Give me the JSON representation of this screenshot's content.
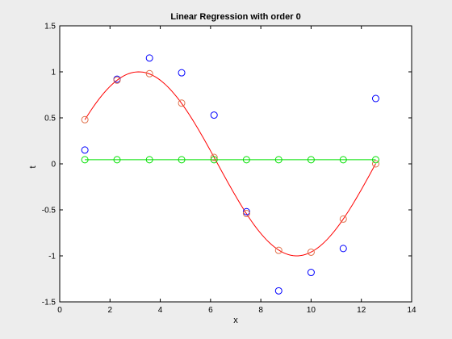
{
  "chart_data": {
    "type": "line",
    "title": "Linear Regression with order 0",
    "xlabel": "x",
    "ylabel": "t",
    "xlim": [
      0,
      14
    ],
    "ylim": [
      -1.5,
      1.5
    ],
    "xticks": [
      0,
      2,
      4,
      6,
      8,
      10,
      12,
      14
    ],
    "yticks": [
      -1.5,
      -1,
      -0.5,
      0,
      0.5,
      1,
      1.5
    ],
    "xtick_labels": [
      "0",
      "2",
      "4",
      "6",
      "8",
      "10",
      "12",
      "14"
    ],
    "ytick_labels": [
      "-1.5",
      "-1",
      "-0.5",
      "0",
      "0.5",
      "1",
      "1.5"
    ],
    "grid": false,
    "series": [
      {
        "style": "markers",
        "color": "#0000ff",
        "x": [
          1.0,
          2.28,
          3.57,
          4.85,
          6.14,
          7.43,
          8.71,
          10.0,
          11.28,
          12.57
        ],
        "y": [
          0.15,
          0.92,
          1.15,
          0.99,
          0.53,
          -0.52,
          -1.38,
          -1.18,
          -0.92,
          0.71
        ]
      },
      {
        "style": "markers",
        "color": "#e0704a",
        "x": [
          1.0,
          2.28,
          3.57,
          4.85,
          6.14,
          7.43,
          8.71,
          10.0,
          11.28,
          12.57
        ],
        "y": [
          0.48,
          0.91,
          0.98,
          0.66,
          0.07,
          -0.54,
          -0.94,
          -0.96,
          -0.6,
          0.0
        ]
      },
      {
        "style": "line",
        "color": "#ff0000",
        "function": "sin(0.5x)",
        "x_range": [
          1.0,
          12.57
        ]
      },
      {
        "style": "line+markers",
        "color": "#00e000",
        "x": [
          1.0,
          2.28,
          3.57,
          4.85,
          6.14,
          7.43,
          8.71,
          10.0,
          11.28,
          12.57
        ],
        "y": [
          0.045,
          0.045,
          0.045,
          0.045,
          0.045,
          0.045,
          0.045,
          0.045,
          0.045,
          0.045
        ]
      }
    ]
  }
}
